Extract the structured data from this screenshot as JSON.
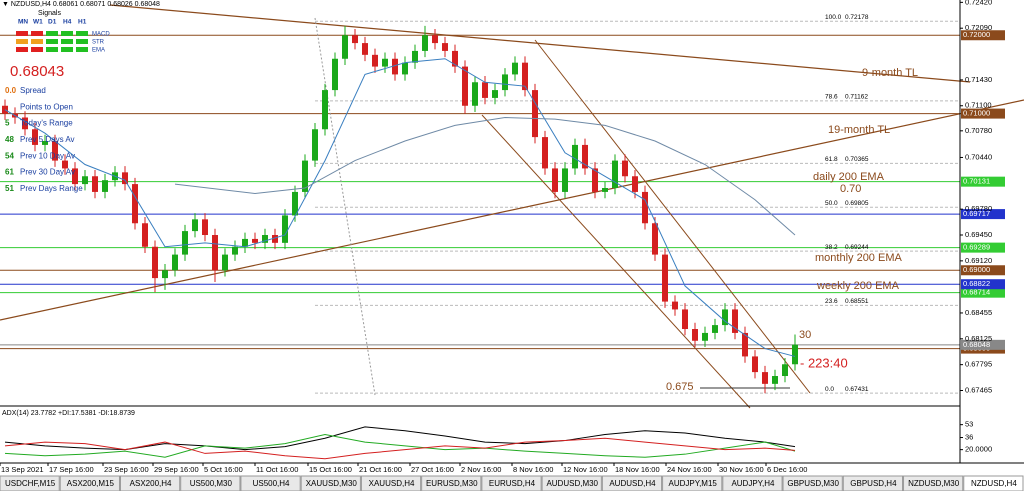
{
  "overlay": {
    "header": "▼ NZDUSD,H4 0.68061 0.68071 0.68026 0.68048",
    "signals_title": "Signals",
    "timeframes": [
      "MN",
      "W1",
      "D1",
      "H4",
      "H1"
    ],
    "indicators": [
      "MACD",
      "STR",
      "EMA"
    ],
    "signal_colors": [
      [
        "#e02020",
        "#e02020",
        "#22c022",
        "#22c022",
        "#22c022"
      ],
      [
        "#f0a020",
        "#f0a020",
        "#22c022",
        "#22c022",
        "#22c022"
      ],
      [
        "#e02020",
        "#e02020",
        "#22c022",
        "#22c022",
        "#22c022"
      ]
    ],
    "price": "0.68043",
    "stats": [
      {
        "value": "0.0",
        "label": "Spread"
      },
      {
        "label": "Points to Open"
      },
      {
        "value": "5",
        "label": "Today's Range"
      },
      {
        "value": "48",
        "label": "Prev 5 Days Av"
      },
      {
        "value": "54",
        "label": "Prev 10 Day Av"
      },
      {
        "value": "61",
        "label": "Prev 30 Day Av"
      },
      {
        "value": "51",
        "label": "Prev Days Range"
      }
    ]
  },
  "annotations": {
    "nine_month": "9-month TL",
    "nineteen_month": "19-month TL",
    "daily_ema": "daily 200 EMA",
    "seventy": "0.70",
    "monthly_ema": "monthly 200 EMA",
    "weekly_ema": "weekly 200 EMA",
    "thirty": "30",
    "pips": "- 223:40",
    "low": "0.675"
  },
  "chart_data": {
    "type": "candlestick",
    "xlim": [
      0,
      96
    ],
    "ylim": [
      0.6728,
      0.7245
    ],
    "up_color": "#1aa81a",
    "down_color": "#d42020",
    "open": [
      0.711,
      0.71,
      0.7095,
      0.708,
      0.706,
      0.7065,
      0.704,
      0.703,
      0.701,
      0.702,
      0.7,
      0.7015,
      0.7025,
      0.701,
      0.696,
      0.693,
      0.689,
      0.69,
      0.692,
      0.695,
      0.6965,
      0.6945,
      0.69,
      0.692,
      0.693,
      0.694,
      0.6935,
      0.6945,
      0.6935,
      0.697,
      0.7,
      0.704,
      0.708,
      0.713,
      0.717,
      0.72,
      0.719,
      0.7175,
      0.716,
      0.717,
      0.715,
      0.7165,
      0.718,
      0.72,
      0.719,
      0.718,
      0.716,
      0.711,
      0.714,
      0.712,
      0.713,
      0.715,
      0.7165,
      0.713,
      0.707,
      0.703,
      0.7,
      0.703,
      0.706,
      0.703,
      0.7,
      0.7005,
      0.704,
      0.702,
      0.7,
      0.696,
      0.692,
      0.686,
      0.685,
      0.6825,
      0.681,
      0.682,
      0.683,
      0.685,
      0.682,
      0.679,
      0.677,
      0.6755,
      0.6765,
      0.678
    ],
    "high": [
      0.7118,
      0.7108,
      0.7103,
      0.7088,
      0.7073,
      0.7073,
      0.7048,
      0.7038,
      0.7028,
      0.7028,
      0.7023,
      0.7033,
      0.7033,
      0.7018,
      0.6968,
      0.6938,
      0.6908,
      0.6928,
      0.6958,
      0.6973,
      0.6973,
      0.6953,
      0.6928,
      0.6938,
      0.6948,
      0.6948,
      0.6953,
      0.6953,
      0.6978,
      0.7008,
      0.7048,
      0.7088,
      0.7138,
      0.7178,
      0.7212,
      0.7208,
      0.7198,
      0.7183,
      0.7178,
      0.7178,
      0.7173,
      0.7188,
      0.7212,
      0.7208,
      0.7198,
      0.7188,
      0.7168,
      0.7148,
      0.7148,
      0.7138,
      0.7158,
      0.7173,
      0.7173,
      0.7138,
      0.7078,
      0.7038,
      0.7038,
      0.7068,
      0.7068,
      0.7038,
      0.7013,
      0.7048,
      0.7048,
      0.7028,
      0.7008,
      0.6968,
      0.6928,
      0.6868,
      0.6858,
      0.6833,
      0.6828,
      0.6838,
      0.6858,
      0.6858,
      0.6828,
      0.6798,
      0.6778,
      0.6773,
      0.6788,
      0.6818
    ],
    "low": [
      0.7092,
      0.7087,
      0.7072,
      0.7052,
      0.7052,
      0.7032,
      0.7022,
      0.7002,
      0.7002,
      0.6992,
      0.6992,
      0.7007,
      0.7002,
      0.6952,
      0.6922,
      0.6872,
      0.6875,
      0.6892,
      0.6912,
      0.6942,
      0.6937,
      0.6885,
      0.6892,
      0.6912,
      0.6922,
      0.6927,
      0.6927,
      0.6927,
      0.6927,
      0.6962,
      0.6992,
      0.7032,
      0.7072,
      0.7122,
      0.7162,
      0.7182,
      0.7167,
      0.7152,
      0.7152,
      0.7142,
      0.7142,
      0.7157,
      0.7172,
      0.7182,
      0.7172,
      0.7152,
      0.71,
      0.7102,
      0.7112,
      0.7112,
      0.7122,
      0.7142,
      0.7122,
      0.7062,
      0.7022,
      0.6992,
      0.6992,
      0.7022,
      0.7022,
      0.6992,
      0.6992,
      0.6997,
      0.7012,
      0.6992,
      0.6952,
      0.6912,
      0.6852,
      0.6842,
      0.6817,
      0.6802,
      0.6802,
      0.6812,
      0.6822,
      0.6812,
      0.6782,
      0.6762,
      0.6743,
      0.6747,
      0.6757,
      0.6772
    ],
    "close": [
      0.71,
      0.7095,
      0.708,
      0.706,
      0.7065,
      0.704,
      0.703,
      0.701,
      0.702,
      0.7,
      0.7015,
      0.7025,
      0.701,
      0.696,
      0.693,
      0.689,
      0.69,
      0.692,
      0.695,
      0.6965,
      0.6945,
      0.69,
      0.692,
      0.693,
      0.694,
      0.6935,
      0.6945,
      0.6935,
      0.697,
      0.7,
      0.704,
      0.708,
      0.713,
      0.717,
      0.72,
      0.719,
      0.7175,
      0.716,
      0.717,
      0.715,
      0.7165,
      0.718,
      0.72,
      0.719,
      0.718,
      0.716,
      0.711,
      0.714,
      0.712,
      0.713,
      0.715,
      0.7165,
      0.713,
      0.707,
      0.703,
      0.7,
      0.703,
      0.706,
      0.703,
      0.7,
      0.7005,
      0.704,
      0.702,
      0.7,
      0.696,
      0.692,
      0.686,
      0.685,
      0.6825,
      0.681,
      0.682,
      0.683,
      0.685,
      0.682,
      0.679,
      0.677,
      0.6755,
      0.6765,
      0.678,
      0.6805
    ],
    "lines": [
      {
        "color": "#3a7fc0",
        "x": [
          0,
          4,
          8,
          12,
          16,
          20,
          24,
          28,
          32,
          36,
          40,
          44,
          48,
          52,
          56,
          60,
          64,
          68,
          72,
          76,
          79
        ],
        "values": [
          0.7105,
          0.7075,
          0.7035,
          0.7015,
          0.693,
          0.6935,
          0.693,
          0.6945,
          0.704,
          0.715,
          0.7165,
          0.717,
          0.714,
          0.7135,
          0.705,
          0.702,
          0.699,
          0.688,
          0.6835,
          0.68,
          0.679
        ]
      },
      {
        "color": "#6f8aa6",
        "x": [
          17,
          25,
          30,
          35,
          40,
          45,
          50,
          55,
          60,
          65,
          70,
          75,
          79
        ],
        "values": [
          0.701,
          0.6998,
          0.7005,
          0.704,
          0.7065,
          0.7085,
          0.7095,
          0.7093,
          0.7085,
          0.7065,
          0.7035,
          0.699,
          0.6945
        ]
      }
    ],
    "levels": [
      {
        "value": 0.72,
        "label": "0.72000",
        "color": "#8b4a1c"
      },
      {
        "value": 0.71,
        "label": "0.71000",
        "color": "#8b4a1c"
      },
      {
        "value": 0.69,
        "label": "0.69000",
        "color": "#8b4a1c"
      },
      {
        "value": 0.68,
        "label": "0.68000",
        "color": "#8b4a1c"
      },
      {
        "value": 0.70131,
        "label": "0.70131",
        "color": "#33cc33"
      },
      {
        "value": 0.69289,
        "label": "0.69289",
        "color": "#33cc33"
      },
      {
        "value": 0.68714,
        "label": "0.68714",
        "color": "#33cc33"
      },
      {
        "value": 0.69717,
        "label": "0.69717",
        "color": "#2233cc"
      },
      {
        "value": 0.68822,
        "label": "0.68822",
        "color": "#2233cc"
      },
      {
        "value": 0.68048,
        "label": "0.68048",
        "color": "#888888"
      }
    ],
    "fib": [
      {
        "ratio": "100.0",
        "value": 0.72178,
        "label": "0.72178"
      },
      {
        "ratio": "78.6",
        "value": 0.71162,
        "label": "0.71162"
      },
      {
        "ratio": "61.8",
        "value": 0.70365,
        "label": "0.70365"
      },
      {
        "ratio": "50.0",
        "value": 0.69805,
        "label": "0.69805"
      },
      {
        "ratio": "38.2",
        "value": 0.69244,
        "label": "0.69244"
      },
      {
        "ratio": "23.6",
        "value": 0.68551,
        "label": "0.68551"
      },
      {
        "ratio": "0.0",
        "value": 0.67431,
        "label": "0.67431"
      }
    ],
    "yticks": [
      {
        "value": 0.7242,
        "label": "0.72420"
      },
      {
        "value": 0.7209,
        "label": "0.72090"
      },
      {
        "value": 0.7143,
        "label": "0.71430"
      },
      {
        "value": 0.711,
        "label": "0.71100"
      },
      {
        "value": 0.7078,
        "label": "0.70780"
      },
      {
        "value": 0.7044,
        "label": "0.70440"
      },
      {
        "value": 0.6978,
        "label": "0.69780"
      },
      {
        "value": 0.6945,
        "label": "0.69450"
      },
      {
        "value": 0.6912,
        "label": "0.69120"
      },
      0.68455,
      0.68125,
      0.67795,
      0.67465
    ],
    "xticks": [
      {
        "value": 0,
        "label": "13 Sep 2021"
      },
      {
        "value": 4.8,
        "label": "17 Sep 16:00"
      },
      {
        "value": 10.3,
        "label": "23 Sep 16:00"
      },
      {
        "value": 15.3,
        "label": "29 Sep 16:00"
      },
      {
        "value": 20.3,
        "label": "5 Oct 16:00"
      },
      {
        "value": 25.5,
        "label": "11 Oct 16:00"
      },
      {
        "value": 30.8,
        "label": "15 Oct 16:00"
      },
      {
        "value": 35.8,
        "label": "21 Oct 16:00"
      },
      {
        "value": 41,
        "label": "27 Oct 16:00"
      },
      {
        "value": 46,
        "label": "2 Nov 16:00"
      },
      {
        "value": 51.2,
        "label": "8 Nov 16:00"
      },
      {
        "value": 56.2,
        "label": "12 Nov 16:00"
      },
      {
        "value": 61.4,
        "label": "18 Nov 16:00"
      },
      {
        "value": 66.6,
        "label": "24 Nov 16:00"
      },
      {
        "value": 71.8,
        "label": "30 Nov 16:00"
      },
      {
        "value": 76.6,
        "label": "6 Dec 16:00"
      }
    ],
    "indicator": {
      "title": "ADX(14) 23.7782 +DI:17.5381 -DI:18.8739",
      "ylim": [
        5,
        75
      ],
      "yticks": [
        53,
        36,
        {
          "value": 20,
          "label": "20.0000"
        }
      ],
      "x": [
        0,
        4,
        8,
        12,
        16,
        20,
        24,
        28,
        32,
        36,
        40,
        44,
        48,
        52,
        56,
        60,
        64,
        68,
        72,
        76,
        79
      ],
      "series": [
        {
          "color": "#000000",
          "values": [
            30,
            25,
            22,
            20,
            28,
            25,
            20,
            24,
            35,
            50,
            45,
            38,
            30,
            28,
            32,
            40,
            45,
            42,
            35,
            30,
            24
          ]
        },
        {
          "color": "#22aa22",
          "values": [
            15,
            12,
            14,
            18,
            10,
            25,
            22,
            28,
            40,
            30,
            25,
            20,
            22,
            18,
            15,
            12,
            10,
            14,
            22,
            30,
            18
          ]
        },
        {
          "color": "#d42020",
          "values": [
            25,
            30,
            28,
            20,
            30,
            15,
            18,
            12,
            8,
            15,
            20,
            25,
            22,
            30,
            32,
            35,
            30,
            25,
            20,
            22,
            19
          ]
        }
      ]
    }
  },
  "tabs": {
    "items": [
      "USDCHF,M15",
      "ASX200,M15",
      "ASX200,H4",
      "US500,M30",
      "US500,H4",
      "XAUUSD,M30",
      "XAUUSD,H4",
      "EURUSD,M30",
      "EURUSD,H4",
      "AUDUSD,M30",
      "AUDUSD,H4",
      "AUDJPY,M15",
      "AUDJPY,H4",
      "GBPUSD,M30",
      "GBPUSD,H4",
      "NZDUSD,M30",
      "NZDUSD,H4"
    ],
    "active": 16
  }
}
